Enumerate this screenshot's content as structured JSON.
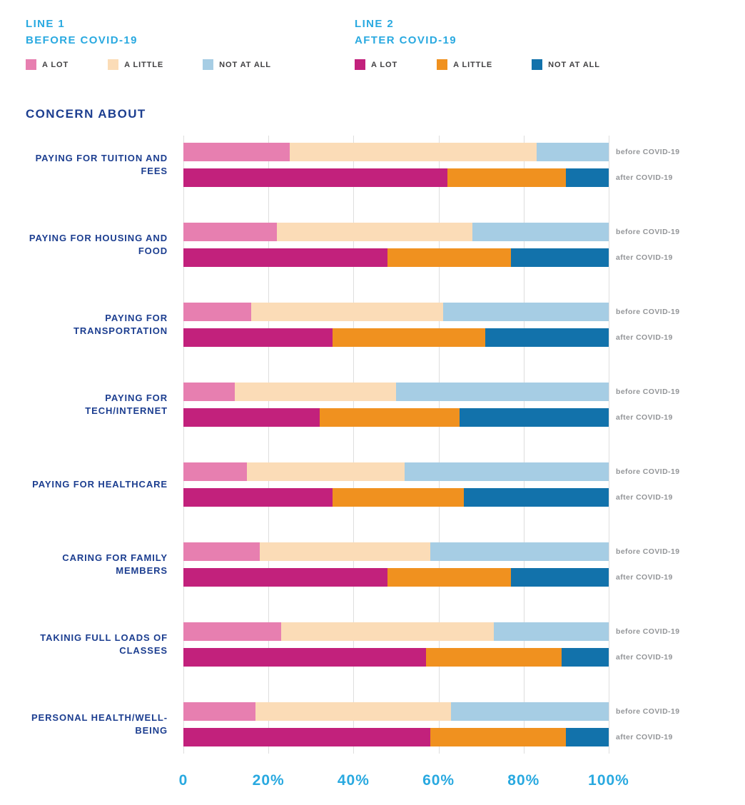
{
  "section_title": "CONCERN ABOUT",
  "legend": [
    {
      "line": "LINE 1",
      "period": "BEFORE COVID-19",
      "items": [
        {
          "label": "A LOT",
          "color": "#e77fb0"
        },
        {
          "label": "A LITTLE",
          "color": "#fbdcb7"
        },
        {
          "label": "NOT AT ALL",
          "color": "#a6cde4"
        }
      ]
    },
    {
      "line": "LINE 2",
      "period": "AFTER COVID-19",
      "items": [
        {
          "label": "A LOT",
          "color": "#c2217c"
        },
        {
          "label": "A LITTLE",
          "color": "#f0911f"
        },
        {
          "label": "NOT AT ALL",
          "color": "#1272ab"
        }
      ]
    }
  ],
  "chart_data": {
    "type": "bar",
    "stacked": true,
    "orientation": "horizontal",
    "title": "CONCERN ABOUT",
    "xlim": [
      0,
      100
    ],
    "x_ticks": [
      "0",
      "20%",
      "40%",
      "60%",
      "80%",
      "100%"
    ],
    "grid": true,
    "legend_position": "top",
    "series_labels": [
      "A LOT",
      "A LITTLE",
      "NOT AT ALL"
    ],
    "row_sublabels": [
      "before COVID-19",
      "after COVID-19"
    ],
    "before_colors": [
      "#e77fb0",
      "#fbdcb7",
      "#a6cde4"
    ],
    "after_colors": [
      "#c2217c",
      "#f0911f",
      "#1272ab"
    ],
    "rows": [
      {
        "category": "PAYING FOR TUITION AND FEES",
        "before": [
          25,
          58,
          17
        ],
        "after": [
          62,
          28,
          10
        ]
      },
      {
        "category": "PAYING FOR HOUSING AND FOOD",
        "before": [
          22,
          46,
          32
        ],
        "after": [
          48,
          29,
          23
        ]
      },
      {
        "category": "PAYING FOR TRANSPORTATION",
        "before": [
          16,
          45,
          39
        ],
        "after": [
          35,
          36,
          29
        ]
      },
      {
        "category": "PAYING FOR TECH/INTERNET",
        "before": [
          12,
          38,
          50
        ],
        "after": [
          32,
          33,
          35
        ]
      },
      {
        "category": "PAYING FOR HEALTHCARE",
        "before": [
          15,
          37,
          48
        ],
        "after": [
          35,
          31,
          34
        ]
      },
      {
        "category": "CARING FOR FAMILY MEMBERS",
        "before": [
          18,
          40,
          42
        ],
        "after": [
          48,
          29,
          23
        ]
      },
      {
        "category": "TAKINIG FULL LOADS OF CLASSES",
        "before": [
          23,
          50,
          27
        ],
        "after": [
          57,
          32,
          11
        ]
      },
      {
        "category": "PERSONAL HEALTH/WELL-BEING",
        "before": [
          17,
          46,
          37
        ],
        "after": [
          58,
          32,
          10
        ]
      }
    ]
  }
}
